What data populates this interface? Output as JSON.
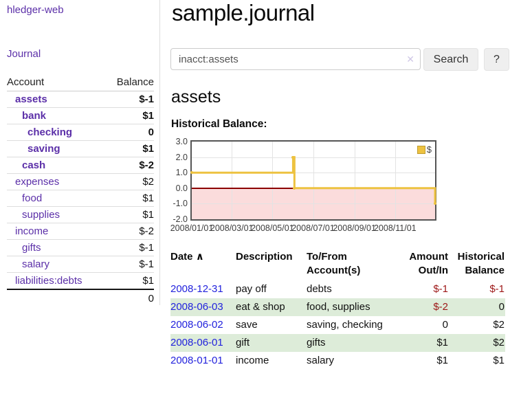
{
  "app": {
    "brand": "hledger-web"
  },
  "colors": {
    "link_purple": "#5b2fa8",
    "link_blue": "#2222dd",
    "negative_strong": "#9d1717",
    "negative_muted": "#c08080",
    "row_stripe_green": "#ddecd9",
    "chart_negative_pink": "#fbdcdc",
    "chart_line_gold": "#EDC240",
    "zero_line_red": "#8b0000"
  },
  "sidebar": {
    "nav": {
      "journal": "Journal"
    },
    "accounts_table": {
      "headers": {
        "account": "Account",
        "balance": "Balance"
      },
      "rows": [
        {
          "name": "assets",
          "balance": "$-1",
          "name_class": "d1 b",
          "bal_class": "b neg"
        },
        {
          "name": "bank",
          "balance": "$1",
          "name_class": "d2 b",
          "bal_class": "b"
        },
        {
          "name": "checking",
          "balance": "0",
          "name_class": "d3 b",
          "bal_class": "b"
        },
        {
          "name": "saving",
          "balance": "$1",
          "name_class": "d3 b",
          "bal_class": "b"
        },
        {
          "name": "cash",
          "balance": "$-2",
          "name_class": "d2 b",
          "bal_class": "b neg"
        },
        {
          "name": "expenses",
          "balance": "$2",
          "name_class": "d1",
          "bal_class": ""
        },
        {
          "name": "food",
          "balance": "$1",
          "name_class": "d2",
          "bal_class": ""
        },
        {
          "name": "supplies",
          "balance": "$1",
          "name_class": "d2",
          "bal_class": ""
        },
        {
          "name": "income",
          "balance": "$-2",
          "name_class": "d1",
          "bal_class": "negl"
        },
        {
          "name": "gifts",
          "balance": "$-1",
          "name_class": "d2",
          "bal_class": "negl"
        },
        {
          "name": "salary",
          "balance": "$-1",
          "name_class": "d2 blue",
          "bal_class": "negl"
        },
        {
          "name": "liabilities:debts",
          "balance": "$1",
          "name_class": "d1",
          "bal_class": ""
        }
      ],
      "total": "0"
    }
  },
  "header": {
    "title": "sample.journal"
  },
  "search": {
    "value": "inacct:assets",
    "clear_icon": "✕",
    "button_label": "Search",
    "help_label": "?"
  },
  "account_page": {
    "heading": "assets",
    "chart_heading": "Historical Balance:"
  },
  "chart_data": {
    "type": "line",
    "step": true,
    "title": "Historical Balance:",
    "series": [
      {
        "name": "$",
        "color": "#EDC240",
        "points": [
          {
            "date": "2008-01-01",
            "value": 1
          },
          {
            "date": "2008-06-01",
            "value": 2
          },
          {
            "date": "2008-06-02",
            "value": 2
          },
          {
            "date": "2008-06-03",
            "value": 0
          },
          {
            "date": "2008-12-31",
            "value": -1
          }
        ]
      }
    ],
    "x_range": [
      "2008-01-01",
      "2008-12-31"
    ],
    "x_ticks": [
      "2008/01/01",
      "2008/03/01",
      "2008/05/01",
      "2008/07/01",
      "2008/09/01",
      "2008/11/01"
    ],
    "y_range": [
      -2,
      3
    ],
    "y_ticks": [
      "3.0",
      "2.0",
      "1.0",
      "0.0",
      "-1.0",
      "-2.0"
    ],
    "grid": true,
    "legend_position": "top-right",
    "negative_region_shaded": true
  },
  "register": {
    "headers": {
      "date": "Date",
      "sort_icon": "∧",
      "description": "Description",
      "accounts": "To/From Account(s)",
      "amount": "Amount Out/In",
      "balance": "Historical Balance"
    },
    "rows": [
      {
        "date": "2008-12-31",
        "description": "pay off",
        "accounts": "debts",
        "amount": "$-1",
        "amount_class": "neg",
        "balance": "$-1",
        "balance_class": "neg"
      },
      {
        "date": "2008-06-03",
        "description": "eat & shop",
        "accounts": "food, supplies",
        "amount": "$-2",
        "amount_class": "neg",
        "balance": "0",
        "balance_class": ""
      },
      {
        "date": "2008-06-02",
        "description": "save",
        "accounts": "saving, checking",
        "amount": "0",
        "amount_class": "",
        "balance": "$2",
        "balance_class": ""
      },
      {
        "date": "2008-06-01",
        "description": "gift",
        "accounts": "gifts",
        "amount": "$1",
        "amount_class": "",
        "balance": "$2",
        "balance_class": ""
      },
      {
        "date": "2008-01-01",
        "description": "income",
        "accounts": "salary",
        "amount": "$1",
        "amount_class": "",
        "balance": "$1",
        "balance_class": ""
      }
    ]
  }
}
